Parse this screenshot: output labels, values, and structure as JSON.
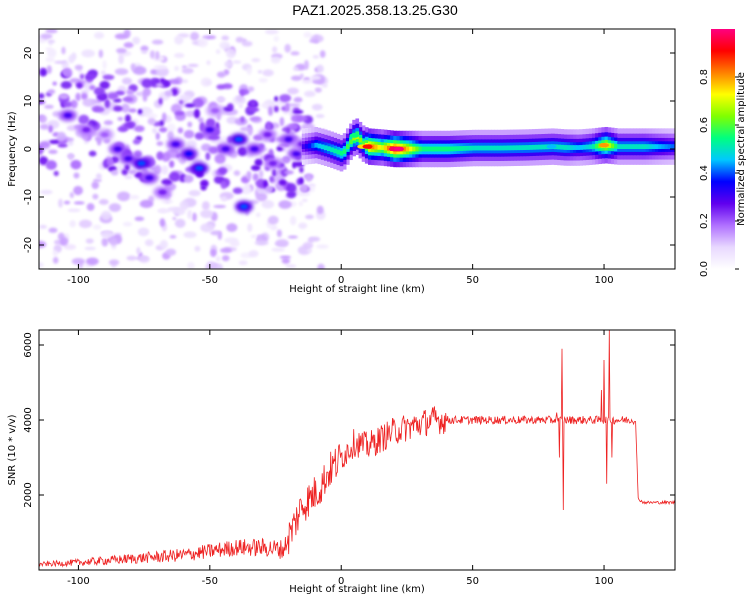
{
  "title": "PAZ1.2025.358.13.25.G30",
  "chart_data": [
    {
      "type": "heatmap",
      "title": "PAZ1.2025.358.13.25.G30",
      "xlabel": "Height of straight line (km)",
      "ylabel": "Frequency (Hz)",
      "xlim": [
        -115,
        127
      ],
      "ylim": [
        -25,
        25
      ],
      "xticks": [
        -100,
        -50,
        0,
        50,
        100
      ],
      "yticks": [
        -20,
        -10,
        0,
        10,
        20
      ],
      "xtick_labels": [
        "-100",
        "-50",
        "0",
        "50",
        "100"
      ],
      "ytick_labels": [
        "-20",
        "-10",
        "0",
        "10",
        "20"
      ],
      "colorbar": {
        "label": "Normalized spectral amplitude",
        "range": [
          0,
          1
        ],
        "ticks": [
          "0.0",
          "0.2",
          "0.4",
          "0.6",
          "0.8"
        ],
        "colors": [
          "#ffffff",
          "#e8d8ff",
          "#b070ff",
          "#6000ee",
          "#0000ff",
          "#00c8ff",
          "#00ff80",
          "#80ff00",
          "#ffff00",
          "#ff8000",
          "#ff0000",
          "#ff0080"
        ]
      },
      "ridge": {
        "x": [
          -15,
          -10,
          -5,
          0,
          3,
          5,
          8,
          10,
          15,
          20,
          25,
          30,
          40,
          50,
          60,
          70,
          80,
          85,
          90,
          95,
          100,
          105,
          110,
          115,
          120,
          127
        ],
        "freq": [
          0.5,
          0.8,
          0.0,
          -1.0,
          1.5,
          2.8,
          1.0,
          0.5,
          0.3,
          0.0,
          0.0,
          0.0,
          0.0,
          0.2,
          0.2,
          0.3,
          0.5,
          0.3,
          0.3,
          0.5,
          0.8,
          0.5,
          0.5,
          0.5,
          0.5,
          0.5
        ],
        "amplitude": [
          0.3,
          0.45,
          0.5,
          0.55,
          0.6,
          0.7,
          0.6,
          0.85,
          0.7,
          0.95,
          0.75,
          0.55,
          0.55,
          0.5,
          0.5,
          0.5,
          0.5,
          0.5,
          0.45,
          0.5,
          0.75,
          0.5,
          0.5,
          0.5,
          0.45,
          0.4
        ]
      },
      "noise_region": {
        "x_range": [
          -115,
          -12
        ],
        "freq_range": [
          -25,
          25
        ],
        "blobs": [
          {
            "x": -104,
            "f": 7,
            "a": 0.3
          },
          {
            "x": -97,
            "f": 4,
            "a": 0.25
          },
          {
            "x": -90,
            "f": 3,
            "a": 0.2
          },
          {
            "x": -85,
            "f": 0,
            "a": 0.3
          },
          {
            "x": -81,
            "f": -2,
            "a": 0.3
          },
          {
            "x": -76,
            "f": -3,
            "a": 0.4
          },
          {
            "x": -73,
            "f": -6,
            "a": 0.3
          },
          {
            "x": -68,
            "f": -9,
            "a": 0.25
          },
          {
            "x": -63,
            "f": 1,
            "a": 0.3
          },
          {
            "x": -58,
            "f": -1,
            "a": 0.35
          },
          {
            "x": -54,
            "f": -4,
            "a": 0.4
          },
          {
            "x": -50,
            "f": 4,
            "a": 0.3
          },
          {
            "x": -48,
            "f": 8,
            "a": 0.2
          },
          {
            "x": -44,
            "f": 0,
            "a": 0.3
          },
          {
            "x": -39,
            "f": 2,
            "a": 0.4
          },
          {
            "x": -37,
            "f": -12,
            "a": 0.4
          },
          {
            "x": -33,
            "f": 0,
            "a": 0.3
          },
          {
            "x": -28,
            "f": 3,
            "a": 0.25
          },
          {
            "x": -26,
            "f": -3,
            "a": 0.25
          },
          {
            "x": -20,
            "f": 2,
            "a": 0.3
          },
          {
            "x": -17,
            "f": -1,
            "a": 0.3
          },
          {
            "x": -15,
            "f": 1,
            "a": 0.25
          }
        ]
      }
    },
    {
      "type": "line",
      "xlabel": "Height of straight line (km)",
      "ylabel": "SNR (10 * v/v)",
      "xlim": [
        -115,
        127
      ],
      "ylim": [
        0,
        6400
      ],
      "xticks": [
        -100,
        -50,
        0,
        50,
        100
      ],
      "yticks": [
        2000,
        4000,
        6000
      ],
      "xtick_labels": [
        "-100",
        "-50",
        "0",
        "50",
        "100"
      ],
      "ytick_labels": [
        "2000",
        "4000",
        "6000"
      ],
      "color": "#ee2222",
      "series": [
        {
          "name": "SNR",
          "x": [
            -115,
            -100,
            -80,
            -60,
            -50,
            -40,
            -30,
            -22,
            -18,
            -15,
            -12,
            -8,
            -5,
            0,
            5,
            10,
            15,
            20,
            25,
            30,
            35,
            40,
            50,
            60,
            70,
            80,
            84,
            88,
            95,
            100,
            102,
            105,
            110,
            112,
            113,
            115,
            120,
            127
          ],
          "y": [
            150,
            200,
            300,
            400,
            500,
            600,
            600,
            550,
            1200,
            1700,
            1900,
            2200,
            2600,
            3000,
            3400,
            3300,
            3500,
            3700,
            3800,
            3900,
            4000,
            4000,
            4000,
            4000,
            4000,
            4000,
            4000,
            4000,
            4000,
            4000,
            4000,
            4000,
            4000,
            4000,
            1900,
            1800,
            1800,
            1800
          ]
        }
      ],
      "spikes": [
        {
          "x": 82,
          "y": 4200
        },
        {
          "x": 83,
          "y": 3000
        },
        {
          "x": 84,
          "y": 5900
        },
        {
          "x": 84.5,
          "y": 1600
        },
        {
          "x": 99,
          "y": 4800
        },
        {
          "x": 100,
          "y": 5600
        },
        {
          "x": 101,
          "y": 2300
        },
        {
          "x": 102,
          "y": 6400
        },
        {
          "x": 103,
          "y": 3000
        }
      ]
    }
  ]
}
